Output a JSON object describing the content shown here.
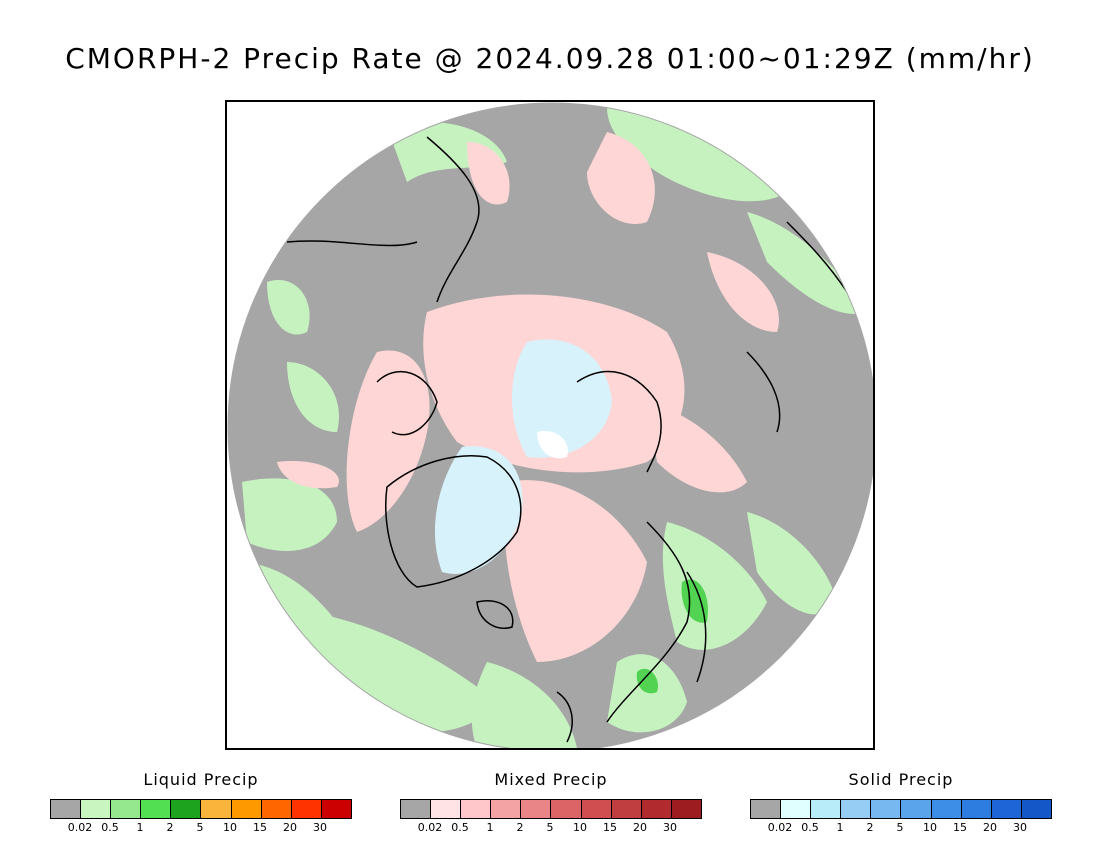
{
  "title": "CMORPH-2 Precip Rate @ 2024.09.28 01:00~01:29Z (mm/hr)",
  "colors": {
    "no_precip": "#a6a6a6",
    "light_green": "#c6f2c0",
    "mid_green": "#8fe38a",
    "pink": "#ffd6d6",
    "ice_blue": "#d7f2fb",
    "coastline": "#000000"
  },
  "legends": [
    {
      "id": "liquid",
      "title": "Liquid Precip",
      "colors": [
        "#a6a6a6",
        "#c8f5c0",
        "#96e88e",
        "#52e052",
        "#1ea31e",
        "#fbb43b",
        "#ff9900",
        "#ff6600",
        "#ff3300",
        "#cc0000"
      ],
      "ticks": [
        "0.02",
        "0.5",
        "1",
        "2",
        "5",
        "10",
        "15",
        "20",
        "30"
      ]
    },
    {
      "id": "mixed",
      "title": "Mixed Precip",
      "colors": [
        "#a6a6a6",
        "#ffe3e5",
        "#ffc7c9",
        "#f4a3a5",
        "#ea8587",
        "#dd6466",
        "#d04d50",
        "#c03d40",
        "#b02a2e",
        "#9c1c20"
      ],
      "ticks": [
        "0.02",
        "0.5",
        "1",
        "2",
        "5",
        "10",
        "15",
        "20",
        "30"
      ]
    },
    {
      "id": "solid",
      "title": "Solid Precip",
      "colors": [
        "#a6a6a6",
        "#e0ffff",
        "#b8ecf8",
        "#95cdf5",
        "#78b8f0",
        "#5aa4ec",
        "#3d8ee6",
        "#2d7ce0",
        "#1e66d8",
        "#1457c8"
      ],
      "ticks": [
        "0.02",
        "0.5",
        "1",
        "2",
        "5",
        "10",
        "15",
        "20",
        "30"
      ]
    }
  ]
}
